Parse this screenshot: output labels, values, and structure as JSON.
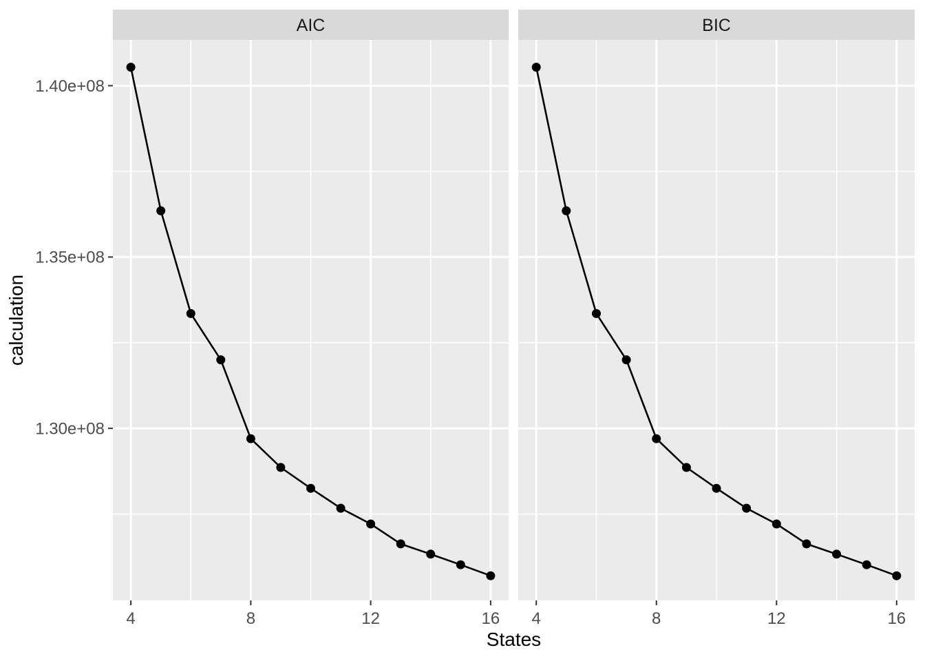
{
  "figure": {
    "background_color": "#FFFFFF",
    "panel_background_color": "#EBEBEB",
    "strip_background_color": "#D9D9D9",
    "gridline_color": "#FFFFFF",
    "axis_text_color": "#4D4D4D",
    "axis_title_color": "#000000",
    "strip_text_color": "#1A1A1A",
    "tick_mark_color": "#333333",
    "series_color": "#000000"
  },
  "facets": [
    {
      "label": "AIC"
    },
    {
      "label": "BIC"
    }
  ],
  "chart_data": {
    "type": "line",
    "title": "",
    "xlabel": "States",
    "ylabel": "calculation",
    "facet_labels": [
      "AIC",
      "BIC"
    ],
    "x": [
      4,
      5,
      6,
      7,
      8,
      9,
      10,
      11,
      12,
      13,
      14,
      15,
      16
    ],
    "series": [
      {
        "name": "AIC",
        "facet": "AIC",
        "values": [
          140540000,
          136350000,
          133350000,
          132000000,
          129700000,
          128860000,
          128250000,
          127670000,
          127210000,
          126630000,
          126330000,
          126020000,
          125700000
        ]
      },
      {
        "name": "BIC",
        "facet": "BIC",
        "values": [
          140540000,
          136350000,
          133350000,
          132000000,
          129700000,
          128860000,
          128250000,
          127670000,
          127210000,
          126630000,
          126330000,
          126020000,
          125700000
        ]
      }
    ],
    "xlim": [
      3.4,
      16.6
    ],
    "ylim": [
      124980000,
      141335000
    ],
    "x_ticks": {
      "major": [
        4,
        8,
        12,
        16
      ],
      "labels": [
        "4",
        "8",
        "12",
        "16"
      ],
      "minor": [
        6,
        10,
        14
      ]
    },
    "y_ticks": {
      "major": [
        140000000,
        135000000,
        130000000
      ],
      "labels": [
        "1.40e+08",
        "1.35e+08",
        "1.30e+08"
      ],
      "minor": [
        137500000,
        132500000,
        127500000
      ]
    },
    "grid": true,
    "legend_position": "none",
    "marker": "point",
    "line_style": "solid"
  }
}
